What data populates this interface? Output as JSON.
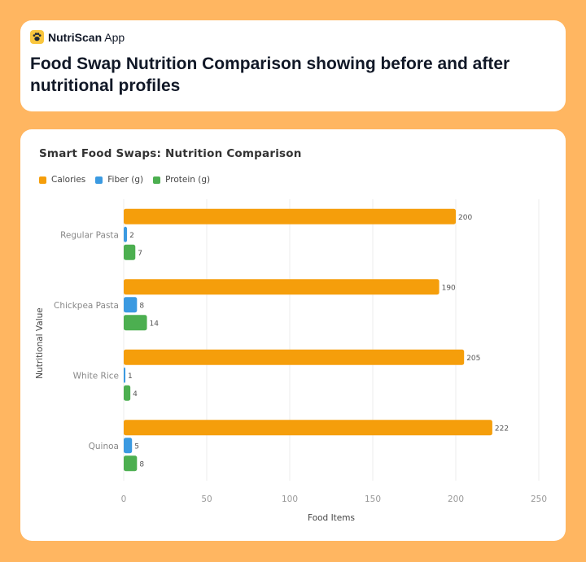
{
  "app": {
    "name_bold": "NutriScan",
    "name_rest": " App"
  },
  "header": {
    "title": "Food Swap Nutrition Comparison showing before and after nutritional profiles"
  },
  "colors": {
    "background": "#FFB661",
    "calories": "#F59E0B",
    "fiber": "#3B9AE1",
    "protein": "#4CAF50"
  },
  "chart_data": {
    "type": "bar",
    "orientation": "horizontal",
    "title": "Smart Food Swaps: Nutrition Comparison",
    "xlabel": "Food Items",
    "ylabel": "Nutritional Value",
    "categories": [
      "Regular Pasta",
      "Chickpea Pasta",
      "White Rice",
      "Quinoa"
    ],
    "series": [
      {
        "name": "Calories",
        "color": "#F59E0B",
        "values": [
          200,
          190,
          205,
          222
        ]
      },
      {
        "name": "Fiber (g)",
        "color": "#3B9AE1",
        "values": [
          2,
          8,
          1,
          5
        ]
      },
      {
        "name": "Protein (g)",
        "color": "#4CAF50",
        "values": [
          7,
          14,
          4,
          8
        ]
      }
    ],
    "xlim": [
      0,
      250
    ],
    "xticks": [
      0,
      50,
      100,
      150,
      200,
      250
    ],
    "grid": true,
    "legend_position": "top-left",
    "data_labels": true
  }
}
